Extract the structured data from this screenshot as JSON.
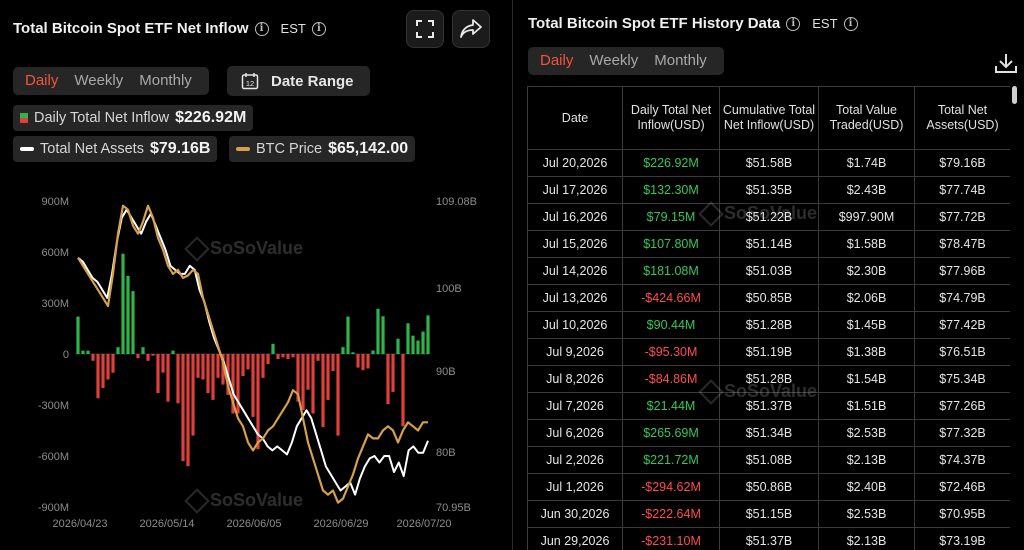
{
  "left": {
    "title": "Total Bitcoin Spot ETF Net Inflow",
    "tz": "EST",
    "tabs": [
      "Daily",
      "Weekly",
      "Monthly"
    ],
    "active_tab": "Daily",
    "date_range_label": "Date Range",
    "calendar_day": "12",
    "legend": {
      "inflow_label": "Daily Total Net Inflow",
      "inflow_value": "$226.92M",
      "assets_label": "Total Net Assets",
      "assets_value": "$79.16B",
      "btc_label": "BTC Price",
      "btc_value": "$65,142.00"
    },
    "watermark": "SoSoValue",
    "colors": {
      "positive": "#2fb34a",
      "negative": "#e0403a",
      "assets_line": "#ffffff",
      "btc_line": "#d4a04a",
      "accent": "#f0553a"
    }
  },
  "chart_data": {
    "type": "bar",
    "x_tick_labels": [
      "2026/04/23",
      "2026/05/14",
      "2026/06/05",
      "2026/06/29",
      "2026/07/20"
    ],
    "left_axis": {
      "ticks": [
        "900M",
        "600M",
        "300M",
        "0",
        "-300M",
        "-600M",
        "-900M"
      ],
      "range": [
        -900,
        900
      ],
      "unit": "M USD"
    },
    "right_axis": {
      "ticks": [
        "109.08B",
        "100B",
        "90B",
        "80B",
        "70.95B"
      ],
      "range": [
        70.95,
        109.08
      ],
      "unit": "B USD"
    },
    "series": [
      {
        "name": "Daily Total Net Inflow",
        "values": [
          220,
          20,
          20,
          -40,
          -260,
          -200,
          -150,
          -110,
          40,
          590,
          460,
          370,
          -25,
          40,
          -40,
          -10,
          -230,
          -110,
          -280,
          20,
          -290,
          -630,
          -660,
          -480,
          -140,
          -150,
          -230,
          -270,
          -140,
          -180,
          -240,
          -350,
          -350,
          -130,
          -90,
          -370,
          -560,
          -140,
          -60,
          60,
          -30,
          -20,
          -30,
          -20,
          -280,
          -330,
          -210,
          -350,
          -40,
          -430,
          -270,
          -100,
          -480,
          40,
          220,
          10,
          -80,
          -95,
          -85,
          21,
          266,
          222,
          -295,
          -223,
          90,
          -425,
          181,
          108,
          79,
          132,
          227
        ]
      },
      {
        "name": "Total Net Assets",
        "values": [
          102,
          101.5,
          100.5,
          99.5,
          99,
          98,
          97,
          100,
          104,
          107,
          108,
          107,
          106,
          105,
          106.5,
          107.5,
          106,
          104.5,
          103,
          101,
          100.5,
          100,
          100,
          101,
          100.5,
          98,
          96.5,
          94,
          92,
          90.5,
          89,
          87,
          85,
          84,
          83,
          82,
          81,
          80,
          79.5,
          78.5,
          78,
          78.5,
          78,
          77.5,
          79,
          81,
          82,
          83,
          82,
          80,
          78,
          76,
          75,
          74,
          73,
          73.5,
          74,
          72.5,
          74.5,
          76,
          77,
          77.3,
          76.5,
          77.3,
          77.3,
          75.3,
          76.5,
          74.8,
          78,
          78.5,
          77.7,
          77.7,
          79.2
        ]
      },
      {
        "name": "BTC Price",
        "values": [
          102,
          101,
          100,
          99,
          98,
          97,
          96,
          100,
          105,
          108.5,
          108,
          106,
          105,
          106.5,
          108.5,
          107,
          104.5,
          103,
          101,
          100,
          100.5,
          99.5,
          99.8,
          100.5,
          100,
          97,
          95,
          93,
          91,
          89,
          86,
          84,
          82,
          81,
          79,
          78,
          79,
          79.5,
          80.5,
          81,
          82,
          83,
          84,
          85.5,
          85,
          82,
          79,
          77,
          75,
          73,
          72.5,
          73,
          71.5,
          72,
          73.5,
          75,
          77,
          78.5,
          80,
          79.5,
          79.5,
          80.5,
          81,
          80.5,
          79,
          80.5,
          81.5,
          81,
          80.5,
          81.5,
          81.5
        ]
      }
    ]
  },
  "right": {
    "title": "Total Bitcoin Spot ETF History Data",
    "tz": "EST",
    "tabs": [
      "Daily",
      "Weekly",
      "Monthly"
    ],
    "active_tab": "Daily",
    "headers": [
      "Date",
      "Daily Total Net Inflow(USD)",
      "Cumulative Total Net Inflow(USD)",
      "Total Value Traded(USD)",
      "Total Net Assets(USD)"
    ],
    "rows": [
      [
        "Jul 20,2026",
        "$226.92M",
        "$51.58B",
        "$1.74B",
        "$79.16B"
      ],
      [
        "Jul 17,2026",
        "$132.30M",
        "$51.35B",
        "$2.43B",
        "$77.74B"
      ],
      [
        "Jul 16,2026",
        "$79.15M",
        "$51.22B",
        "$997.90M",
        "$77.72B"
      ],
      [
        "Jul 15,2026",
        "$107.80M",
        "$51.14B",
        "$1.58B",
        "$78.47B"
      ],
      [
        "Jul 14,2026",
        "$181.08M",
        "$51.03B",
        "$2.30B",
        "$77.96B"
      ],
      [
        "Jul 13,2026",
        "-$424.66M",
        "$50.85B",
        "$2.06B",
        "$74.79B"
      ],
      [
        "Jul 10,2026",
        "$90.44M",
        "$51.28B",
        "$1.45B",
        "$77.42B"
      ],
      [
        "Jul 9,2026",
        "-$95.30M",
        "$51.19B",
        "$1.38B",
        "$76.51B"
      ],
      [
        "Jul 8,2026",
        "-$84.86M",
        "$51.28B",
        "$1.54B",
        "$75.34B"
      ],
      [
        "Jul 7,2026",
        "$21.44M",
        "$51.37B",
        "$1.51B",
        "$77.26B"
      ],
      [
        "Jul 6,2026",
        "$265.69M",
        "$51.34B",
        "$2.53B",
        "$77.32B"
      ],
      [
        "Jul 2,2026",
        "$221.72M",
        "$51.08B",
        "$2.13B",
        "$74.37B"
      ],
      [
        "Jul 1,2026",
        "-$294.62M",
        "$50.86B",
        "$2.40B",
        "$72.46B"
      ],
      [
        "Jun 30,2026",
        "-$222.64M",
        "$51.15B",
        "$2.53B",
        "$70.95B"
      ],
      [
        "Jun 29,2026",
        "-$231.10M",
        "$51.37B",
        "$2.13B",
        "$73.19B"
      ]
    ]
  }
}
